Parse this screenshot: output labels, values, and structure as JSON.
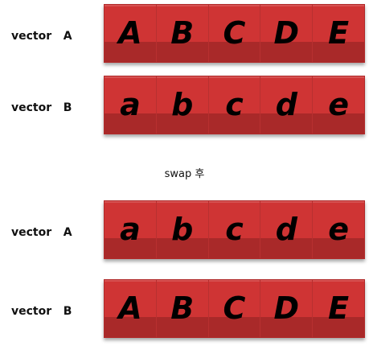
{
  "rows": [
    {
      "label": "vector   A",
      "items": [
        "A",
        "B",
        "C",
        "D",
        "E"
      ]
    },
    {
      "label": "vector   B",
      "items": [
        "a",
        "b",
        "c",
        "d",
        "e"
      ]
    },
    {
      "label": "vector   A",
      "items": [
        "a",
        "b",
        "c",
        "d",
        "e"
      ]
    },
    {
      "label": "vector   B",
      "items": [
        "A",
        "B",
        "C",
        "D",
        "E"
      ]
    }
  ],
  "caption": "swap 후",
  "colors": {
    "bar": "#cf3434",
    "bar_shade": "#9e2a2a",
    "text": "#000000"
  }
}
